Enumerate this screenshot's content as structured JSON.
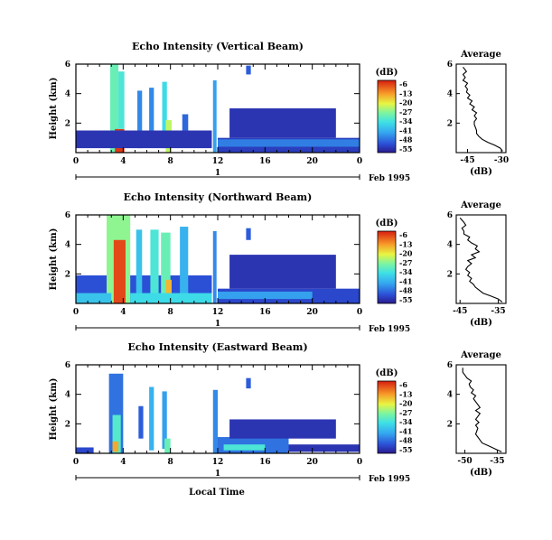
{
  "chart_data": [
    {
      "type": "heatmap",
      "title": "Echo Intensity (Vertical Beam)",
      "ylabel": "Height (km)",
      "yticks": [
        "2",
        "4",
        "6"
      ],
      "ylim": [
        0,
        6
      ],
      "xlim": [
        0,
        24
      ],
      "xticks": [
        "0",
        "4",
        "8",
        "12",
        "16",
        "20",
        "0"
      ],
      "date_label": "Feb 1995",
      "day_label": "1",
      "colorbar_unit": "(dB)",
      "colorbar_ticks": [
        "-6",
        "-13",
        "-20",
        "-27",
        "-34",
        "-41",
        "-48",
        "-55"
      ],
      "cells": [
        {
          "x": [
            2.9,
            3.6
          ],
          "y": [
            0,
            6.0
          ],
          "v": -30
        },
        {
          "x": [
            3.3,
            4.1
          ],
          "y": [
            0,
            1.6
          ],
          "v": -8
        },
        {
          "x": [
            3.6,
            4.1
          ],
          "y": [
            1.6,
            5.5
          ],
          "v": -33
        },
        {
          "x": [
            5.2,
            5.6
          ],
          "y": [
            0.3,
            4.2
          ],
          "v": -44
        },
        {
          "x": [
            6.2,
            6.6
          ],
          "y": [
            0.5,
            4.4
          ],
          "v": -44
        },
        {
          "x": [
            7.3,
            7.7
          ],
          "y": [
            0.3,
            4.8
          ],
          "v": -35
        },
        {
          "x": [
            7.6,
            8.1
          ],
          "y": [
            0,
            2.2
          ],
          "v": -24
        },
        {
          "x": [
            9.0,
            9.5
          ],
          "y": [
            0.8,
            2.6
          ],
          "v": -47
        },
        {
          "x": [
            0,
            11.5
          ],
          "y": [
            0.3,
            1.5
          ],
          "v": -52
        },
        {
          "x": [
            11.6,
            11.9
          ],
          "y": [
            0,
            4.9
          ],
          "v": -42
        },
        {
          "x": [
            12.0,
            24.0
          ],
          "y": [
            0,
            1.0
          ],
          "v": -51
        },
        {
          "x": [
            12.0,
            24.0
          ],
          "y": [
            0.4,
            0.9
          ],
          "v": -45
        },
        {
          "x": [
            13,
            22
          ],
          "y": [
            1.0,
            3.0
          ],
          "v": -52
        },
        {
          "x": [
            14.4,
            14.8
          ],
          "y": [
            5.3,
            5.9
          ],
          "v": -48
        }
      ],
      "profile": {
        "title": "Average",
        "xlabel": "(dB)",
        "xticks": [
          "-45",
          "-30"
        ],
        "xlim": [
          -50,
          -28
        ],
        "yticks": [
          "2",
          "4",
          "6"
        ],
        "ylim": [
          0,
          6
        ],
        "x": [
          -29.5,
          -30.5,
          -33,
          -36,
          -38.5,
          -40,
          -41,
          -41,
          -41.5,
          -42,
          -42,
          -41,
          -42,
          -41,
          -43,
          -42,
          -44,
          -43,
          -45,
          -44,
          -45.5,
          -45,
          -46,
          -45,
          -47,
          -46,
          -47,
          -45.5,
          -47
        ],
        "y": [
          0.1,
          0.3,
          0.5,
          0.7,
          0.9,
          1.1,
          1.3,
          1.5,
          1.7,
          1.9,
          2.1,
          2.3,
          2.5,
          2.7,
          2.9,
          3.1,
          3.3,
          3.5,
          3.7,
          3.9,
          4.1,
          4.3,
          4.5,
          4.7,
          4.9,
          5.1,
          5.3,
          5.5,
          5.8
        ]
      }
    },
    {
      "type": "heatmap",
      "title": "Echo Intensity (Northward Beam)",
      "ylabel": "Height (km)",
      "yticks": [
        "2",
        "4",
        "6"
      ],
      "ylim": [
        0,
        6
      ],
      "xlim": [
        0,
        24
      ],
      "xticks": [
        "0",
        "4",
        "8",
        "12",
        "16",
        "20",
        "0"
      ],
      "date_label": "Feb 1995",
      "day_label": "1",
      "colorbar_unit": "(dB)",
      "colorbar_ticks": [
        "-6",
        "-13",
        "-20",
        "-27",
        "-34",
        "-41",
        "-48",
        "-55"
      ],
      "cells": [
        {
          "x": [
            0,
            11.5
          ],
          "y": [
            0,
            1.9
          ],
          "v": -49
        },
        {
          "x": [
            2.6,
            4.6
          ],
          "y": [
            0,
            6.0
          ],
          "v": -27
        },
        {
          "x": [
            3.2,
            4.2
          ],
          "y": [
            0,
            4.3
          ],
          "v": -9
        },
        {
          "x": [
            5.1,
            5.6
          ],
          "y": [
            0.2,
            5.0
          ],
          "v": -38
        },
        {
          "x": [
            6.3,
            7.0
          ],
          "y": [
            0.2,
            5.0
          ],
          "v": -33
        },
        {
          "x": [
            7.2,
            8.0
          ],
          "y": [
            0.3,
            4.8
          ],
          "v": -30
        },
        {
          "x": [
            7.6,
            8.1
          ],
          "y": [
            0,
            1.6
          ],
          "v": -17
        },
        {
          "x": [
            8.8,
            9.5
          ],
          "y": [
            0.5,
            5.2
          ],
          "v": -40
        },
        {
          "x": [
            0,
            3
          ],
          "y": [
            0,
            0.7
          ],
          "v": -38
        },
        {
          "x": [
            4.6,
            11.5
          ],
          "y": [
            0,
            0.7
          ],
          "v": -35
        },
        {
          "x": [
            11.6,
            11.9
          ],
          "y": [
            0,
            4.9
          ],
          "v": -44
        },
        {
          "x": [
            12.0,
            24.0
          ],
          "y": [
            0,
            1.0
          ],
          "v": -50
        },
        {
          "x": [
            12.0,
            20
          ],
          "y": [
            0.3,
            0.8
          ],
          "v": -42
        },
        {
          "x": [
            13,
            22
          ],
          "y": [
            1.0,
            3.3
          ],
          "v": -52
        },
        {
          "x": [
            14.4,
            14.8
          ],
          "y": [
            4.3,
            5.1
          ],
          "v": -48
        }
      ],
      "profile": {
        "title": "Average",
        "xlabel": "(dB)",
        "xticks": [
          "-45",
          "-35"
        ],
        "xlim": [
          -46,
          -33
        ],
        "yticks": [
          "2",
          "4",
          "6"
        ],
        "ylim": [
          0,
          6
        ],
        "x": [
          -34,
          -35,
          -37,
          -39,
          -40,
          -41,
          -41.5,
          -42.5,
          -42,
          -43,
          -42.5,
          -43.5,
          -43,
          -42,
          -43,
          -41,
          -42,
          -40,
          -41,
          -40.5,
          -42,
          -43,
          -42.5,
          -44,
          -44,
          -44.5,
          -43.5,
          -44,
          -45
        ],
        "y": [
          0.1,
          0.3,
          0.5,
          0.7,
          0.9,
          1.1,
          1.3,
          1.5,
          1.7,
          1.9,
          2.1,
          2.3,
          2.5,
          2.7,
          2.9,
          3.1,
          3.3,
          3.5,
          3.7,
          3.9,
          4.1,
          4.3,
          4.5,
          4.7,
          4.9,
          5.1,
          5.3,
          5.5,
          5.8
        ]
      }
    },
    {
      "type": "heatmap",
      "title": "Echo Intensity (Eastward Beam)",
      "ylabel": "Height (km)",
      "yticks": [
        "2",
        "4",
        "6"
      ],
      "ylim": [
        0,
        6
      ],
      "xlim": [
        0,
        24
      ],
      "xticks": [
        "0",
        "4",
        "8",
        "12",
        "16",
        "20",
        "0"
      ],
      "date_label": "Feb 1995",
      "day_label": "1",
      "colorbar_unit": "(dB)",
      "colorbar_ticks": [
        "-6",
        "-13",
        "-20",
        "-27",
        "-34",
        "-41",
        "-48",
        "-55"
      ],
      "cells": [
        {
          "x": [
            2.8,
            4.0
          ],
          "y": [
            0,
            5.4
          ],
          "v": -46
        },
        {
          "x": [
            3.1,
            3.8
          ],
          "y": [
            0,
            2.6
          ],
          "v": -32
        },
        {
          "x": [
            3.1,
            3.6
          ],
          "y": [
            0.1,
            0.8
          ],
          "v": -16
        },
        {
          "x": [
            5.3,
            5.7
          ],
          "y": [
            1.0,
            3.2
          ],
          "v": -48
        },
        {
          "x": [
            6.2,
            6.6
          ],
          "y": [
            0.2,
            4.5
          ],
          "v": -40
        },
        {
          "x": [
            7.3,
            7.7
          ],
          "y": [
            0.3,
            4.2
          ],
          "v": -42
        },
        {
          "x": [
            7.5,
            8.0
          ],
          "y": [
            0,
            1.0
          ],
          "v": -30
        },
        {
          "x": [
            0,
            1.5
          ],
          "y": [
            0,
            0.4
          ],
          "v": -50
        },
        {
          "x": [
            11.6,
            12.0
          ],
          "y": [
            0,
            4.3
          ],
          "v": -44
        },
        {
          "x": [
            12.0,
            18.0
          ],
          "y": [
            0,
            1.1
          ],
          "v": -46
        },
        {
          "x": [
            12.5,
            16.0
          ],
          "y": [
            0.2,
            0.6
          ],
          "v": -33
        },
        {
          "x": [
            18.0,
            24.0
          ],
          "y": [
            0.1,
            0.6
          ],
          "v": -52
        },
        {
          "x": [
            13,
            22
          ],
          "y": [
            1.0,
            2.3
          ],
          "v": -52
        },
        {
          "x": [
            14.4,
            14.8
          ],
          "y": [
            4.4,
            5.1
          ],
          "v": -48
        }
      ],
      "profile": {
        "title": "Average",
        "xlabel": "(dB)",
        "xticks": [
          "-50",
          "-35"
        ],
        "xlim": [
          -54,
          -31
        ],
        "yticks": [
          "2",
          "4",
          "6"
        ],
        "ylim": [
          0,
          6
        ],
        "x": [
          -33,
          -36,
          -39,
          -42,
          -43,
          -44,
          -45,
          -44.5,
          -44,
          -45,
          -43.5,
          -45,
          -44,
          -43,
          -45,
          -43,
          -44,
          -45,
          -46,
          -45,
          -47,
          -46,
          -47.5,
          -48,
          -47,
          -49,
          -50,
          -51,
          -51
        ],
        "y": [
          0.1,
          0.3,
          0.5,
          0.7,
          0.9,
          1.1,
          1.3,
          1.5,
          1.7,
          1.9,
          2.1,
          2.3,
          2.5,
          2.7,
          2.9,
          3.1,
          3.3,
          3.5,
          3.7,
          3.9,
          4.1,
          4.3,
          4.5,
          4.7,
          4.9,
          5.1,
          5.3,
          5.5,
          5.8
        ]
      }
    }
  ],
  "figure": {
    "xlabel": "Local Time"
  }
}
